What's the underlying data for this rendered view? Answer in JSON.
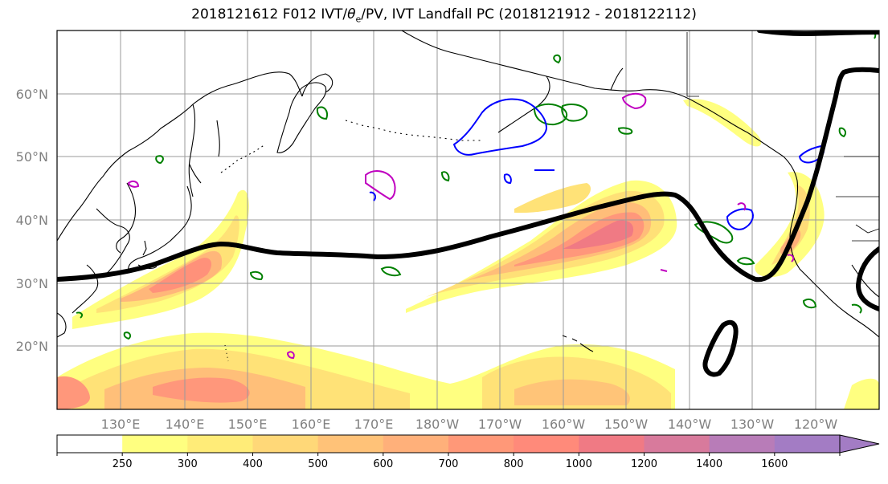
{
  "title": {
    "prefix": "2018121612 F012 IVT/",
    "theta": "θ",
    "theta_sub": "e",
    "suffix": "/PV, IVT Landfall PC (2018121912 - 2018122112)"
  },
  "lat_labels": [
    "60°N",
    "50°N",
    "40°N",
    "30°N",
    "20°N"
  ],
  "lon_labels": [
    "130°E",
    "140°E",
    "150°E",
    "160°E",
    "170°E",
    "180°W",
    "170°W",
    "160°W",
    "150°W",
    "140°W",
    "130°W",
    "120°W"
  ],
  "colorbar": {
    "labels": [
      "250",
      "300",
      "400",
      "500",
      "600",
      "700",
      "800",
      "1000",
      "1200",
      "1400",
      "1600"
    ],
    "colors": [
      "#ffff80",
      "#ffec78",
      "#ffd878",
      "#ffc278",
      "#ffb07a",
      "#ff9878",
      "#ff8a7a",
      "#f07a84",
      "#d87a9c",
      "#b87cb8",
      "#a37cc4"
    ]
  },
  "colors": {
    "jet_line": "#000000",
    "pv_contour": "#008000",
    "theta_contour": "#0000ff",
    "magenta_contour": "#c000c0",
    "coastline": "#000000",
    "grid": "#9a9a9a"
  }
}
